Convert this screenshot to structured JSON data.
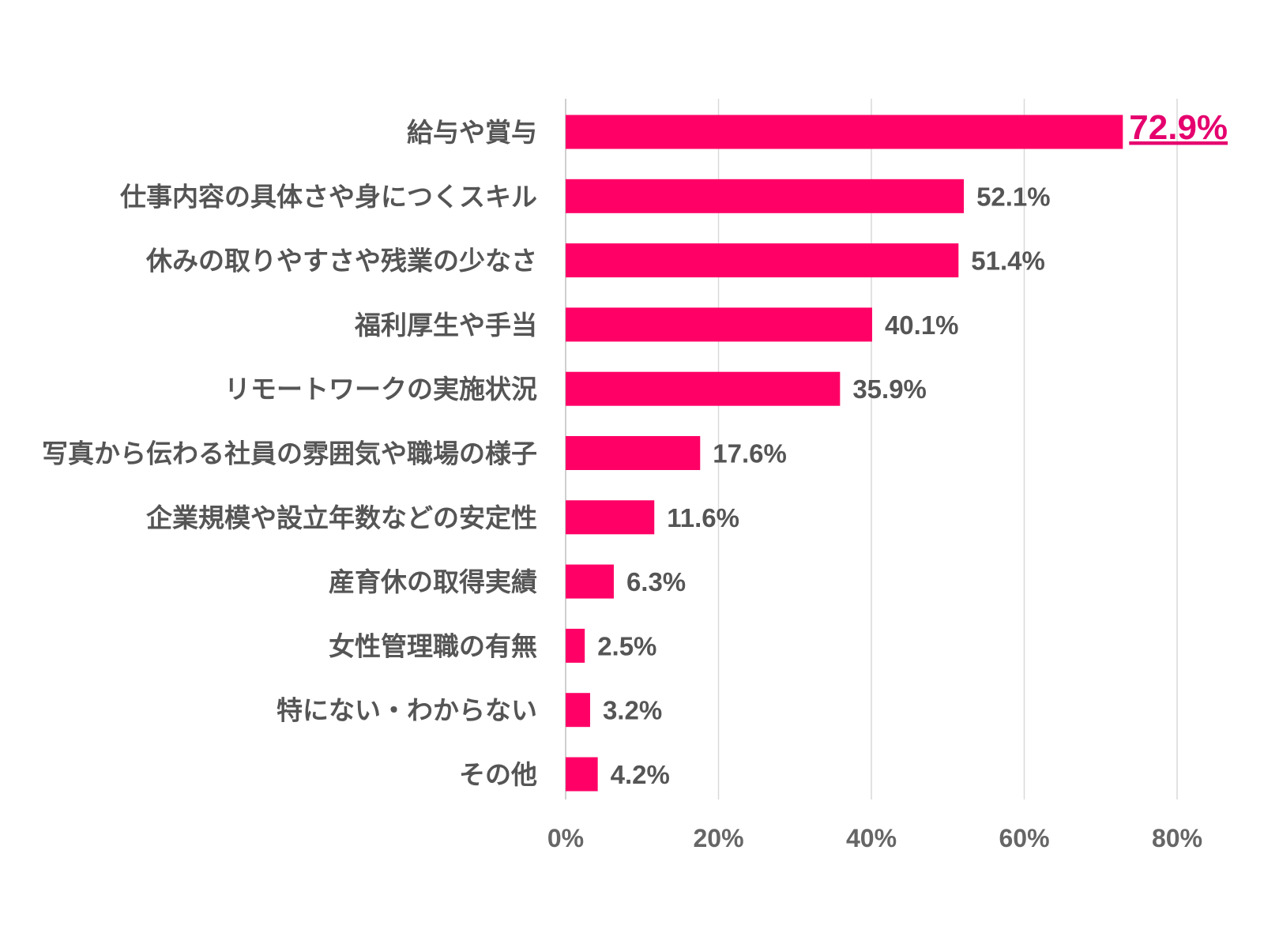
{
  "chart_data": {
    "type": "bar",
    "orientation": "horizontal",
    "categories": [
      "給与や賞与",
      "仕事内容の具体さや身につくスキル",
      "休みの取りやすさや残業の少なさ",
      "福利厚生や手当",
      "リモートワークの実施状況",
      "写真から伝わる社員の雰囲気や職場の様子",
      "企業規模や設立年数などの安定性",
      "産育休の取得実績",
      "女性管理職の有無",
      "特にない・わからない",
      "その他"
    ],
    "values": [
      72.9,
      52.1,
      51.4,
      40.1,
      35.9,
      17.6,
      11.6,
      6.3,
      2.5,
      3.2,
      4.2
    ],
    "value_labels": [
      "72.9%",
      "52.1%",
      "51.4%",
      "40.1%",
      "35.9%",
      "17.6%",
      "11.6%",
      "6.3%",
      "2.5%",
      "3.2%",
      "4.2%"
    ],
    "highlight_index": 0,
    "xlim": [
      0,
      80
    ],
    "xticks": [
      0,
      20,
      40,
      60,
      80
    ],
    "xtick_labels": [
      "0%",
      "20%",
      "40%",
      "60%",
      "80%"
    ],
    "grid": true,
    "bar_color": "#ff0066",
    "highlight_color": "#e5006e",
    "text_color": "#555555"
  }
}
